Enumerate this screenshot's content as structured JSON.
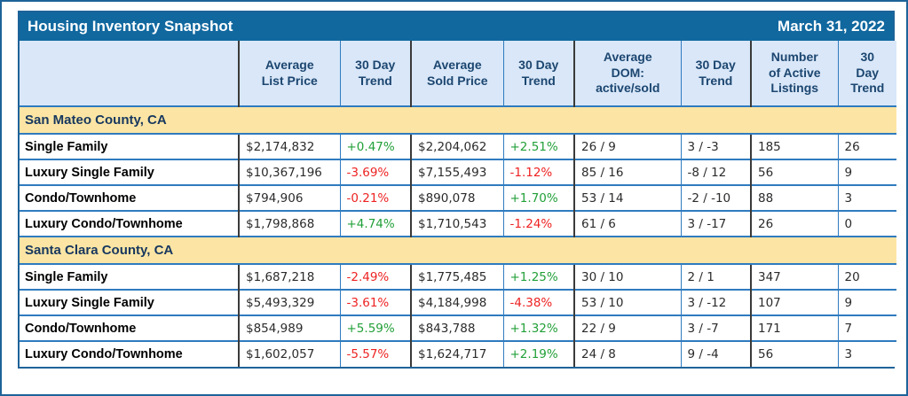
{
  "title_bar": {
    "title": "Housing Inventory Snapshot",
    "date": "March 31, 2022"
  },
  "columns": [
    "",
    "Average\nList Price",
    "30 Day\nTrend",
    "Average\nSold Price",
    "30 Day\nTrend",
    "Average\nDOM:\nactive/sold",
    "30 Day\nTrend",
    "Number\nof Active\nListings",
    "30\nDay\nTrend"
  ],
  "sections": [
    {
      "name": "San Mateo County, CA",
      "rows": [
        {
          "label": "Single Family",
          "cells": [
            "$2,174,832",
            "+0.47%",
            "$2,204,062",
            "+2.51%",
            "26 / 9",
            "3 / -3",
            "185",
            "26"
          ]
        },
        {
          "label": "Luxury Single Family",
          "cells": [
            "$10,367,196",
            "-3.69%",
            "$7,155,493",
            "-1.12%",
            "85 / 16",
            "-8 / 12",
            "56",
            "9"
          ]
        },
        {
          "label": "Condo/Townhome",
          "cells": [
            "$794,906",
            "-0.21%",
            "$890,078",
            "+1.70%",
            "53 / 14",
            "-2 / -10",
            "88",
            "3"
          ]
        },
        {
          "label": "Luxury Condo/Townhome",
          "cells": [
            "$1,798,868",
            "+4.74%",
            "$1,710,543",
            "-1.24%",
            "61 / 6",
            "3 / -17",
            "26",
            "0"
          ]
        }
      ]
    },
    {
      "name": "Santa Clara County, CA",
      "rows": [
        {
          "label": "Single Family",
          "cells": [
            "$1,687,218",
            "-2.49%",
            "$1,775,485",
            "+1.25%",
            "30 / 10",
            "2 / 1",
            "347",
            "20"
          ]
        },
        {
          "label": "Luxury Single Family",
          "cells": [
            "$5,493,329",
            "-3.61%",
            "$4,184,998",
            "-4.38%",
            "53 / 10",
            "3 / -12",
            "107",
            "9"
          ]
        },
        {
          "label": "Condo/Townhome",
          "cells": [
            "$854,989",
            "+5.59%",
            "$843,788",
            "+1.32%",
            "22 / 9",
            "3 / -7",
            "171",
            "7"
          ]
        },
        {
          "label": "Luxury Condo/Townhome",
          "cells": [
            "$1,602,057",
            "-5.57%",
            "$1,624,717",
            "+2.19%",
            "24 / 8",
            "9 / -4",
            "56",
            "3"
          ]
        }
      ]
    }
  ],
  "colors": {
    "title_bar_bg": "#11689f",
    "header_bg": "#d9e7f8",
    "header_text": "#1c4670",
    "section_bg": "#fce5a4",
    "section_text": "#17375e",
    "positive_trend": "#22a038",
    "negative_trend": "#ee2222",
    "grid_blue": "#2f7bbf",
    "grid_black": "#3a3a3a"
  }
}
